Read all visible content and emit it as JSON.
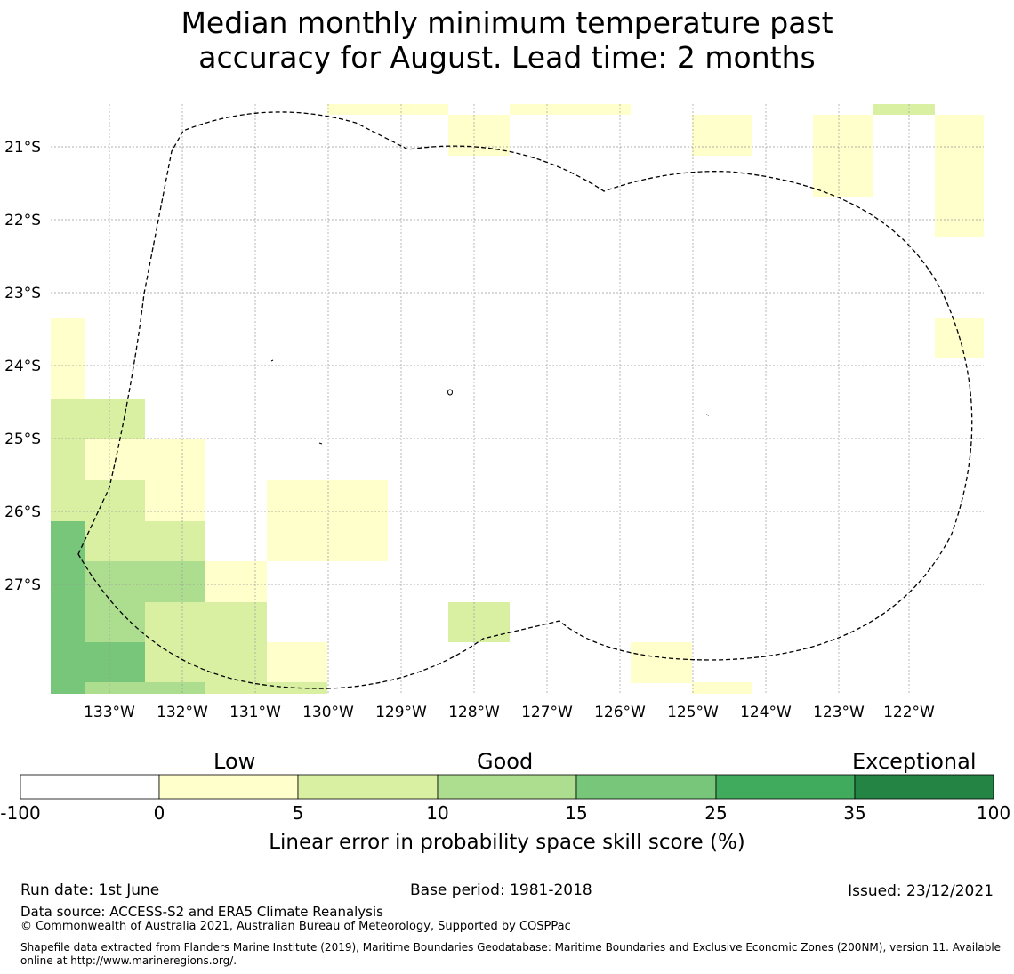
{
  "title": {
    "line1": "Median monthly minimum temperature past",
    "line2": "accuracy for August. Lead time: 2 months"
  },
  "map": {
    "lat_labels": [
      "21°S",
      "22°S",
      "23°S",
      "24°S",
      "25°S",
      "26°S",
      "27°S"
    ],
    "lon_labels": [
      "133°W",
      "132°W",
      "131°W",
      "130°W",
      "129°W",
      "128°W",
      "127°W",
      "126°W",
      "125°W",
      "124°W",
      "123°W",
      "122°W"
    ],
    "boundary_style": "dashed",
    "gridlines": true
  },
  "legend": {
    "category_labels": [
      "Low",
      "Good",
      "Exceptional"
    ],
    "ticks": [
      "-100",
      "0",
      "5",
      "10",
      "15",
      "25",
      "35",
      "100"
    ],
    "colors": [
      "#ffffff",
      "#ffffcc",
      "#d9f0a3",
      "#addd8e",
      "#78c679",
      "#41ab5d",
      "#238443"
    ],
    "label": "Linear error in probability space skill score (%)"
  },
  "footer": {
    "run_date": "Run date: 1st June",
    "base_period": "Base period: 1981-2018",
    "issued": "Issued: 23/12/2021",
    "data_source": "Data source: ACCESS-S2 and ERA5 Climate Reanalysis",
    "copyright": "© Commonwealth of Australia 2021, Australian Bureau of Meteorology, Supported by COSPPac",
    "shapefile": "Shapefile data extracted from Flanders Marine Institute (2019), Maritime Boundaries Geodatabase: Maritime Boundaries and Exclusive Economic Zones (200NM), version 11. Available online at http://www.marineregions.org/."
  }
}
